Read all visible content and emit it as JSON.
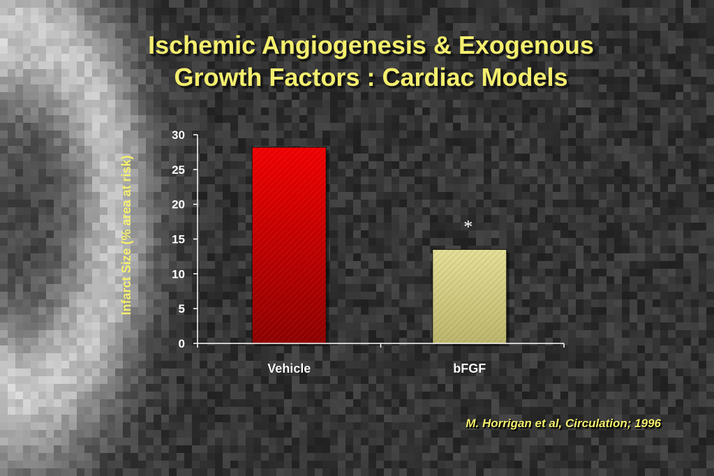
{
  "slide": {
    "title_line1": "Ischemic Angiogenesis & Exogenous",
    "title_line2": "Growth Factors : Cardiac Models",
    "citation": "M. Horrigan et al,  Circulation; 1996"
  },
  "colors": {
    "title": "#f4ef6e",
    "vehicle_bar": "#d10000",
    "bfgf_bar": "#d6d08a",
    "axis_text": "#ffffff",
    "ylabel": "#f4ef6e"
  },
  "chart_data": {
    "type": "bar",
    "categories": [
      "Vehicle",
      "bFGF"
    ],
    "values": [
      28.2,
      13.5
    ],
    "title": "",
    "xlabel": "",
    "ylabel": "Infarct Size (% area at risk)",
    "ylim": [
      0,
      30
    ],
    "yticks": [
      0,
      5,
      10,
      15,
      20,
      25,
      30
    ],
    "annotations": [
      {
        "category": "bFGF",
        "text": "*"
      }
    ],
    "grid": false,
    "legend": "none"
  }
}
